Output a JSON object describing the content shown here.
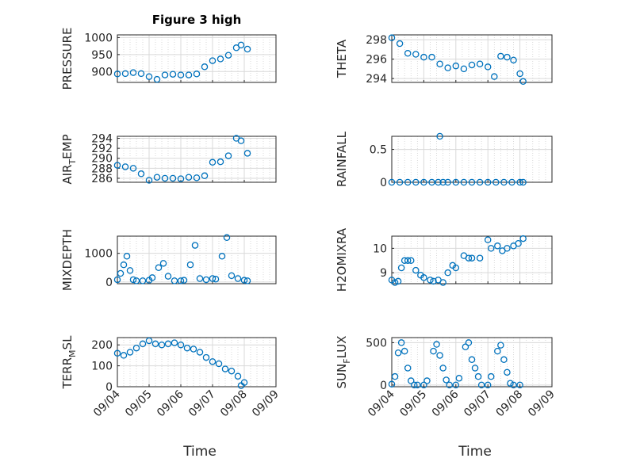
{
  "colors": {
    "series": "#0072bd",
    "axis": "#262626",
    "grid": "#d9d9d9"
  },
  "x_ticks": [
    "09/04",
    "09/05",
    "09/06",
    "09/07",
    "09/08",
    "09/09"
  ],
  "xlabel": "Time",
  "chart_data": [
    {
      "id": "pressure",
      "type": "scatter",
      "title": "Figure 3 high",
      "ylabel": "PRESSURE",
      "ylim": [
        868,
        1008
      ],
      "yticks": [
        900,
        950,
        1000
      ],
      "xlim": [
        0,
        5
      ],
      "x": [
        0,
        0.25,
        0.5,
        0.75,
        1.0,
        1.25,
        1.5,
        1.75,
        2.0,
        2.25,
        2.5,
        2.75,
        3.0,
        3.25,
        3.5,
        3.75,
        3.9,
        4.1
      ],
      "y": [
        893,
        894,
        897,
        894,
        885,
        877,
        890,
        892,
        890,
        890,
        893,
        914,
        932,
        937,
        948,
        970,
        978,
        966
      ]
    },
    {
      "id": "theta",
      "type": "scatter",
      "title": "",
      "ylabel": "THETA",
      "ylim": [
        293.6,
        298.5
      ],
      "yticks": [
        294,
        296,
        298
      ],
      "xlim": [
        0,
        5
      ],
      "x": [
        0,
        0.25,
        0.5,
        0.75,
        1.0,
        1.25,
        1.5,
        1.75,
        2.0,
        2.25,
        2.5,
        2.75,
        3.0,
        3.2,
        3.4,
        3.6,
        3.8,
        4.0,
        4.1
      ],
      "y": [
        298.2,
        297.6,
        296.6,
        296.5,
        296.2,
        296.2,
        295.5,
        295.1,
        295.3,
        295.0,
        295.4,
        295.5,
        295.2,
        294.2,
        296.3,
        296.2,
        295.9,
        294.5,
        293.7
      ]
    },
    {
      "id": "air_temp",
      "type": "scatter",
      "title": "",
      "ylabel": "AIR_TEMP",
      "ylabel_main": "AIR",
      "ylabel_sub": "T",
      "ylabel_rest": "EMP",
      "ylim": [
        285.2,
        294.4
      ],
      "yticks": [
        286,
        288,
        290,
        292,
        294
      ],
      "xlim": [
        0,
        5
      ],
      "x": [
        0,
        0.25,
        0.5,
        0.75,
        1.0,
        1.25,
        1.5,
        1.75,
        2.0,
        2.25,
        2.5,
        2.75,
        3.0,
        3.25,
        3.5,
        3.75,
        3.9,
        4.1
      ],
      "y": [
        288.6,
        288.3,
        288.0,
        286.9,
        285.6,
        286.2,
        286.0,
        286.0,
        285.9,
        286.2,
        286.1,
        286.5,
        289.2,
        289.3,
        290.5,
        294.0,
        293.5,
        291.0
      ]
    },
    {
      "id": "rainfall",
      "type": "scatter",
      "title": "",
      "ylabel": "RAINFALL",
      "ylim": [
        0,
        0.7
      ],
      "yticks": [
        0,
        0.5
      ],
      "xlim": [
        0,
        5
      ],
      "x": [
        0,
        0.25,
        0.5,
        0.75,
        1.0,
        1.25,
        1.45,
        1.5,
        1.6,
        1.75,
        2.0,
        2.25,
        2.5,
        2.75,
        3.0,
        3.25,
        3.5,
        3.75,
        4.0,
        4.1
      ],
      "y": [
        0,
        0,
        0,
        0,
        0,
        0,
        0,
        0.7,
        0,
        0,
        0,
        0,
        0,
        0,
        0,
        0,
        0,
        0,
        0,
        0
      ]
    },
    {
      "id": "mixdepth",
      "type": "scatter",
      "title": "",
      "ylabel": "MIXDEPTH",
      "ylim": [
        -60,
        1600
      ],
      "yticks": [
        0,
        1000
      ],
      "xlim": [
        0,
        5
      ],
      "x": [
        0,
        0.1,
        0.2,
        0.3,
        0.4,
        0.5,
        0.6,
        0.8,
        1.0,
        1.1,
        1.3,
        1.45,
        1.6,
        1.8,
        2.0,
        2.1,
        2.3,
        2.45,
        2.6,
        2.8,
        3.0,
        3.1,
        3.3,
        3.45,
        3.6,
        3.8,
        4.0,
        4.1
      ],
      "y": [
        80,
        300,
        600,
        900,
        400,
        80,
        40,
        40,
        60,
        150,
        500,
        650,
        200,
        40,
        40,
        60,
        600,
        1280,
        120,
        80,
        120,
        100,
        900,
        1550,
        220,
        120,
        60,
        40
      ]
    },
    {
      "id": "h2omixra",
      "type": "scatter",
      "title": "",
      "ylabel": "H2OMIXRA",
      "ylim": [
        8.55,
        10.5
      ],
      "yticks": [
        9,
        10
      ],
      "xlim": [
        0,
        5
      ],
      "x": [
        0,
        0.1,
        0.2,
        0.3,
        0.4,
        0.5,
        0.6,
        0.75,
        0.9,
        1.0,
        1.2,
        1.3,
        1.45,
        1.6,
        1.75,
        1.9,
        2.0,
        2.25,
        2.4,
        2.5,
        2.75,
        3.0,
        3.1,
        3.3,
        3.45,
        3.6,
        3.8,
        3.95,
        4.1
      ],
      "y": [
        8.7,
        8.6,
        8.65,
        9.2,
        9.5,
        9.5,
        9.5,
        9.1,
        8.9,
        8.8,
        8.7,
        8.65,
        8.7,
        8.6,
        9.0,
        9.3,
        9.2,
        9.7,
        9.6,
        9.6,
        9.6,
        10.35,
        10.0,
        10.1,
        9.9,
        10.0,
        10.1,
        10.2,
        10.4
      ]
    },
    {
      "id": "terr_msl",
      "type": "scatter",
      "title": "",
      "ylabel": "TERR_MSL",
      "ylabel_main": "TERR",
      "ylabel_sub": "M",
      "ylabel_rest": "SL",
      "ylim": [
        0,
        235
      ],
      "yticks": [
        0,
        100,
        200
      ],
      "xlim": [
        0,
        5
      ],
      "x": [
        0,
        0.2,
        0.4,
        0.6,
        0.8,
        1.0,
        1.2,
        1.4,
        1.6,
        1.8,
        2.0,
        2.2,
        2.4,
        2.6,
        2.8,
        3.0,
        3.2,
        3.4,
        3.6,
        3.8,
        3.9,
        4.0
      ],
      "y": [
        160,
        150,
        165,
        185,
        205,
        220,
        205,
        200,
        205,
        210,
        200,
        185,
        180,
        165,
        140,
        120,
        110,
        85,
        75,
        50,
        5,
        20
      ]
    },
    {
      "id": "sun_flux",
      "type": "scatter",
      "title": "",
      "ylabel": "SUN_FLUX",
      "ylabel_main": "SUN",
      "ylabel_sub": "F",
      "ylabel_rest": "LUX",
      "ylim": [
        -20,
        560
      ],
      "yticks": [
        0,
        500
      ],
      "xlim": [
        0,
        5
      ],
      "x": [
        0,
        0.1,
        0.2,
        0.3,
        0.4,
        0.5,
        0.6,
        0.7,
        0.8,
        1.0,
        1.1,
        1.3,
        1.4,
        1.5,
        1.6,
        1.7,
        1.8,
        2.0,
        2.1,
        2.3,
        2.4,
        2.5,
        2.6,
        2.7,
        2.8,
        3.0,
        3.1,
        3.3,
        3.4,
        3.5,
        3.6,
        3.7,
        3.8,
        4.0
      ],
      "y": [
        10,
        100,
        380,
        500,
        400,
        200,
        50,
        0,
        0,
        0,
        50,
        400,
        480,
        350,
        200,
        60,
        0,
        0,
        80,
        450,
        500,
        300,
        200,
        100,
        0,
        0,
        100,
        400,
        470,
        300,
        150,
        20,
        0,
        0
      ]
    }
  ]
}
